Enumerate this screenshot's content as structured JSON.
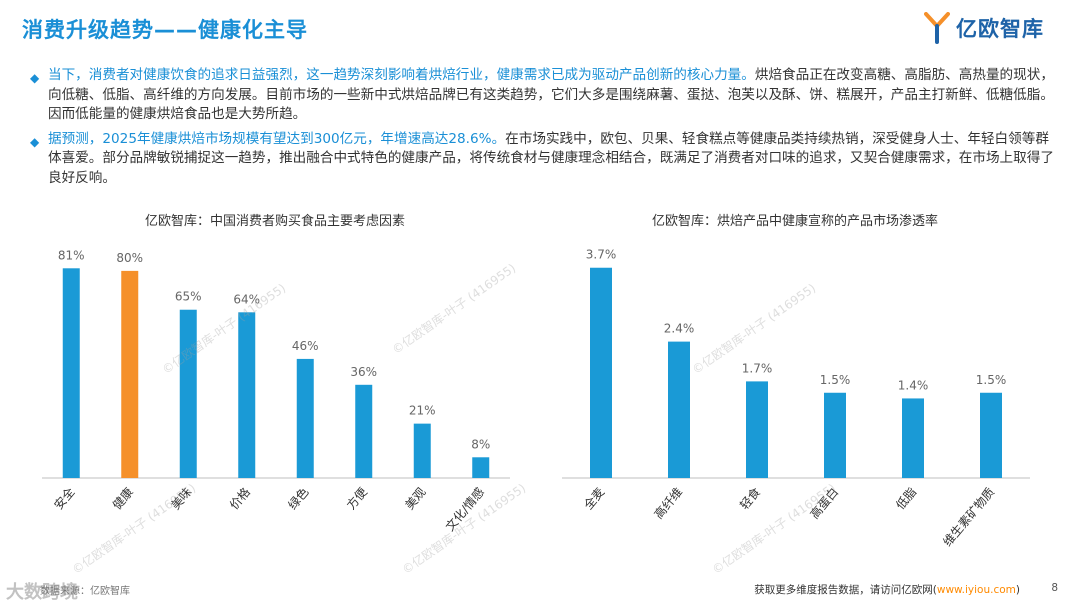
{
  "header": {
    "title": "消费升级趋势——健康化主导",
    "logo_text": "亿欧智库"
  },
  "bullets": [
    {
      "highlight": "当下，消费者对健康饮食的追求日益强烈，这一趋势深刻影响着烘焙行业，健康需求已成为驱动产品创新的核心力量。",
      "text": "烘焙食品正在改变高糖、高脂肪、高热量的现状，向低糖、低脂、高纤维的方向发展。目前市场的一些新中式烘焙品牌已有这类趋势，它们大多是围绕麻薯、蛋挞、泡芙以及酥、饼、糕展开，产品主打新鲜、低糖低脂。因而低能量的健康烘焙食品也是大势所趋。"
    },
    {
      "highlight": "据预测，2025年健康烘焙市场规模有望达到300亿元，年增速高达28.6%。",
      "text": "在市场实践中，欧包、贝果、轻食糕点等健康品类持续热销，深受健身人士、年轻白领等群体喜爱。部分品牌敏锐捕捉这一趋势，推出融合中式特色的健康产品，将传统食材与健康理念相结合，既满足了消费者对口味的追求，又契合健康需求，在市场上取得了良好反响。"
    }
  ],
  "chart_data": [
    {
      "type": "bar",
      "title": "亿欧智库：中国消费者购买食品主要考虑因素",
      "categories": [
        "安全",
        "健康",
        "美味",
        "价格",
        "绿色",
        "方便",
        "美观",
        "文化/情感"
      ],
      "values": [
        81,
        80,
        65,
        64,
        46,
        36,
        21,
        8
      ],
      "value_labels": [
        "81%",
        "80%",
        "65%",
        "64%",
        "46%",
        "36%",
        "21%",
        "8%"
      ],
      "ylim": [
        0,
        90
      ],
      "colors": [
        "#1a9ad6",
        "#f5902a",
        "#1a9ad6",
        "#1a9ad6",
        "#1a9ad6",
        "#1a9ad6",
        "#1a9ad6",
        "#1a9ad6"
      ],
      "grid": false
    },
    {
      "type": "bar",
      "title": "亿欧智库：烘焙产品中健康宣称的产品市场渗透率",
      "categories": [
        "全麦",
        "高纤维",
        "轻食",
        "高蛋白",
        "低脂",
        "维生素矿物质"
      ],
      "values": [
        3.7,
        2.4,
        1.7,
        1.5,
        1.4,
        1.5
      ],
      "value_labels": [
        "3.7%",
        "2.4%",
        "1.7%",
        "1.5%",
        "1.4%",
        "1.5%"
      ],
      "ylim": [
        0,
        4.1
      ],
      "colors": [
        "#1a9ad6",
        "#1a9ad6",
        "#1a9ad6",
        "#1a9ad6",
        "#1a9ad6",
        "#1a9ad6"
      ],
      "grid": false
    }
  ],
  "footer": {
    "source": "数据来源：亿欧智库",
    "more_prefix": "获取更多维度报告数据，请访问亿欧网(",
    "more_link": "www.iyiou.com",
    "more_suffix": ")",
    "page": "8"
  },
  "watermark": {
    "text": "©亿欧智库-叶子 (416955)",
    "corner": "大数跨境"
  }
}
